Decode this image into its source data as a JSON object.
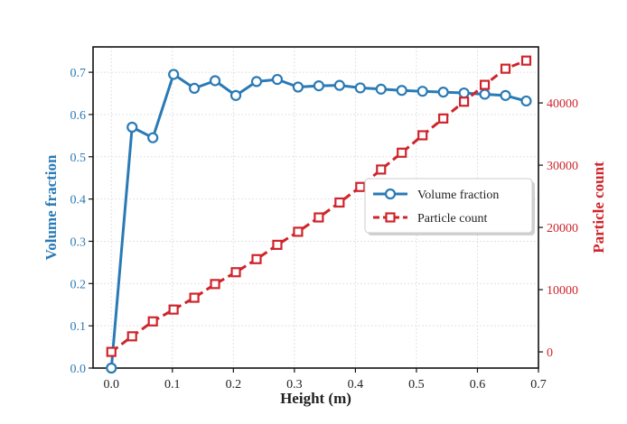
{
  "chart_data": {
    "type": "line",
    "xlabel": "Height (m)",
    "ylabel_left": "Volume fraction",
    "ylabel_right": "Particle count",
    "xlim": [
      -0.03,
      0.7
    ],
    "ylim_left": [
      0,
      0.76
    ],
    "ylim_right": [
      -2600,
      49000
    ],
    "x_ticks": [
      "0.0",
      "0.1",
      "0.2",
      "0.3",
      "0.4",
      "0.5",
      "0.6",
      "0.7"
    ],
    "x_tick_values": [
      0,
      0.1,
      0.2,
      0.3,
      0.4,
      0.5,
      0.6,
      0.7
    ],
    "y_left_ticks": [
      "0.0",
      "0.1",
      "0.2",
      "0.3",
      "0.4",
      "0.5",
      "0.6",
      "0.7"
    ],
    "y_left_tick_values": [
      0,
      0.1,
      0.2,
      0.3,
      0.4,
      0.5,
      0.6,
      0.7
    ],
    "y_right_ticks": [
      "0",
      "10000",
      "20000",
      "30000",
      "40000"
    ],
    "y_right_tick_values": [
      0,
      10000,
      20000,
      30000,
      40000
    ],
    "grid": true,
    "legend_position": "center-right",
    "colors": {
      "volume": "#2a7ab5",
      "particle": "#d0242b"
    },
    "series": [
      {
        "name": "Volume fraction",
        "axis": "left",
        "marker": "circle",
        "x": [
          0.0,
          0.034,
          0.068,
          0.102,
          0.136,
          0.17,
          0.204,
          0.238,
          0.272,
          0.306,
          0.34,
          0.374,
          0.408,
          0.442,
          0.476,
          0.51,
          0.544,
          0.578,
          0.612,
          0.646,
          0.68
        ],
        "values": [
          0.0,
          0.57,
          0.545,
          0.695,
          0.662,
          0.68,
          0.645,
          0.678,
          0.683,
          0.665,
          0.668,
          0.669,
          0.663,
          0.66,
          0.657,
          0.655,
          0.653,
          0.651,
          0.648,
          0.645,
          0.632
        ]
      },
      {
        "name": "Particle count",
        "axis": "right",
        "marker": "square",
        "x": [
          0.0,
          0.034,
          0.068,
          0.102,
          0.136,
          0.17,
          0.204,
          0.238,
          0.272,
          0.306,
          0.34,
          0.374,
          0.408,
          0.442,
          0.476,
          0.51,
          0.544,
          0.578,
          0.612,
          0.646,
          0.68
        ],
        "values": [
          0,
          2500,
          4900,
          6800,
          8700,
          10900,
          12800,
          14900,
          17200,
          19300,
          21600,
          24000,
          26500,
          29300,
          32000,
          34800,
          37500,
          40200,
          42900,
          45500,
          46800
        ]
      }
    ]
  }
}
